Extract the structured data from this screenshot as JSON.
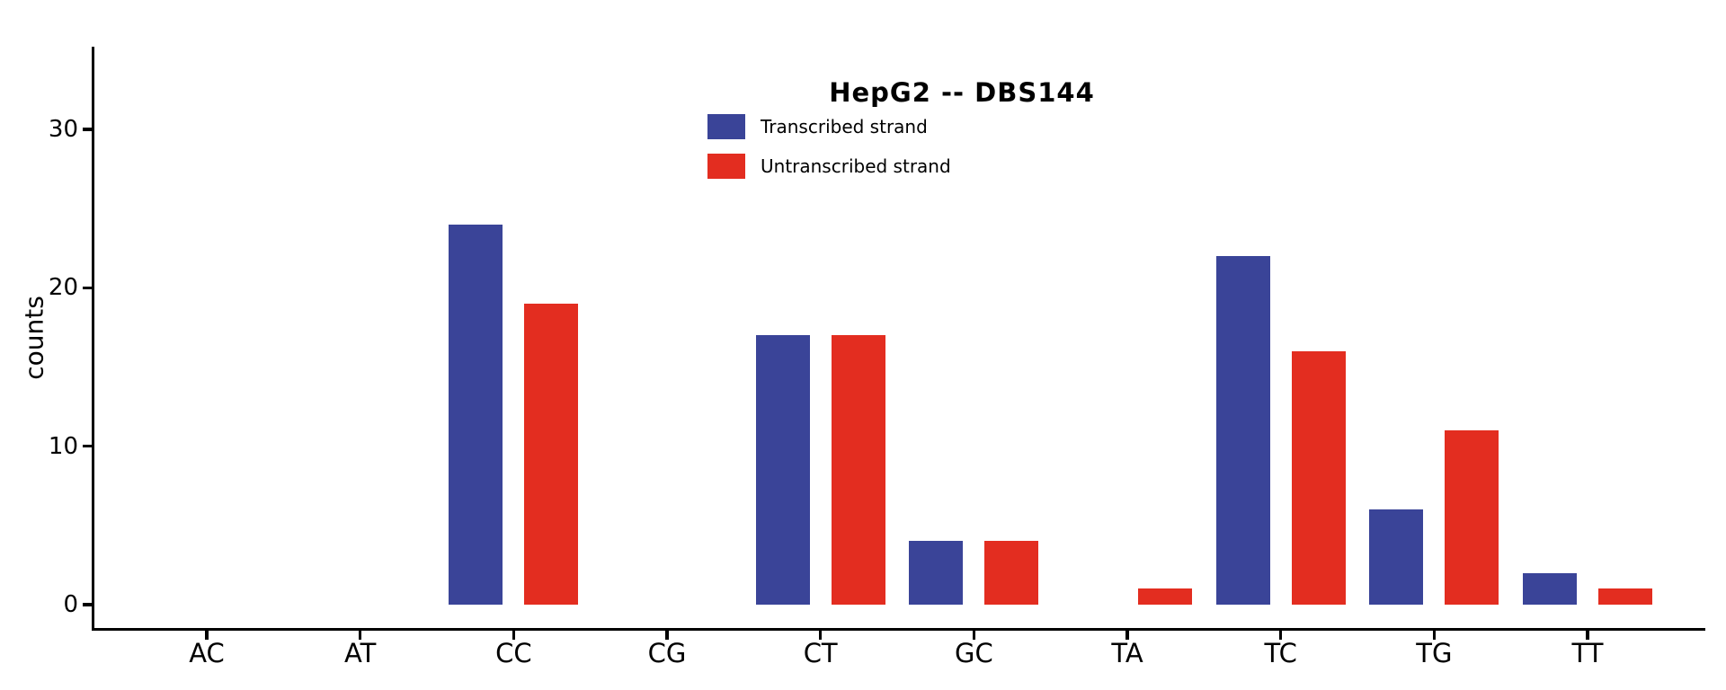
{
  "chart_data": {
    "type": "bar",
    "title": "HepG2 -- DBS144",
    "xlabel": "",
    "ylabel": "counts",
    "categories": [
      "AC",
      "AT",
      "CC",
      "CG",
      "CT",
      "GC",
      "TA",
      "TC",
      "TG",
      "TT"
    ],
    "series": [
      {
        "name": "Transcribed strand",
        "color": "#3A4498",
        "values": [
          0,
          0,
          24,
          0,
          17,
          4,
          0,
          22,
          6,
          2
        ]
      },
      {
        "name": "Untranscribed strand",
        "color": "#E32D20",
        "values": [
          0,
          0,
          19,
          0,
          17,
          4,
          1,
          16,
          11,
          1
        ]
      }
    ],
    "yticks": [
      0,
      10,
      20,
      30
    ],
    "ylim": [
      0,
      35
    ],
    "grid": false,
    "legend_position": "upper center",
    "axis_color": "#000000",
    "background_color": "#ffffff"
  }
}
